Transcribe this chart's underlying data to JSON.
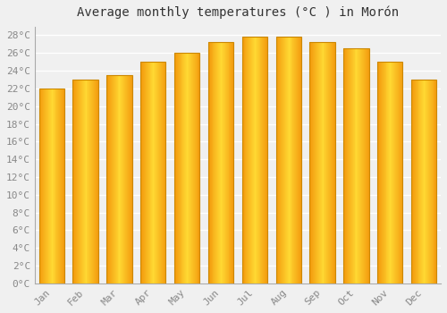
{
  "title": "Average monthly temperatures (°C ) in Morón",
  "months": [
    "Jan",
    "Feb",
    "Mar",
    "Apr",
    "May",
    "Jun",
    "Jul",
    "Aug",
    "Sep",
    "Oct",
    "Nov",
    "Dec"
  ],
  "values": [
    22.0,
    23.0,
    23.5,
    25.0,
    26.0,
    27.2,
    27.8,
    27.8,
    27.2,
    26.5,
    25.0,
    23.0
  ],
  "bar_color_center": "#FFD700",
  "bar_color_edge": "#F5A000",
  "bar_edge_color": "#CC8800",
  "background_color": "#F0F0F0",
  "grid_color": "#FFFFFF",
  "ytick_step": 2,
  "ymin": 0,
  "ymax": 29,
  "title_fontsize": 10,
  "tick_fontsize": 8,
  "tick_color": "#888888",
  "font_family": "monospace"
}
